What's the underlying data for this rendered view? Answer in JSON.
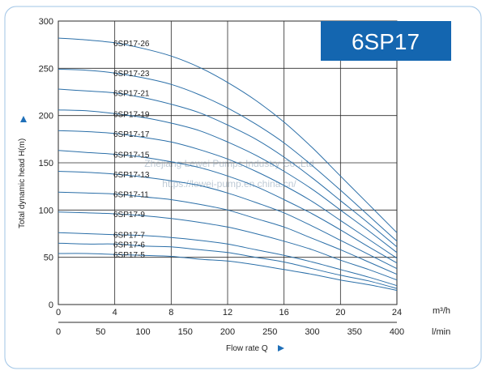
{
  "chart_data": {
    "type": "line",
    "title": "6SP17",
    "ylabel": "Total dynamic head H(m)",
    "xlabel": "Flow rate Q",
    "x_unit_primary": "m³/h",
    "x_unit_secondary": "l/min",
    "xlim": [
      0,
      24
    ],
    "ylim": [
      0,
      300
    ],
    "x_ticks": [
      0,
      4,
      8,
      12,
      16,
      20,
      24
    ],
    "x_ticks_lmin": [
      0,
      50,
      100,
      150,
      200,
      250,
      300,
      350,
      400
    ],
    "y_ticks": [
      0,
      50,
      100,
      150,
      200,
      250,
      300
    ],
    "grid": true,
    "watermark": [
      "Zhejiang Lewei Pumps Industry Co.,Ltd",
      "https://lewei-pump.en.china.cn/"
    ],
    "x": [
      0,
      2,
      4,
      6,
      8,
      10,
      12,
      14,
      16,
      18,
      20,
      22,
      24
    ],
    "series": [
      {
        "name": "6SP17-26",
        "values": [
          282,
          280,
          277,
          271,
          263,
          251,
          235,
          216,
          193,
          166,
          136,
          106,
          76
        ]
      },
      {
        "name": "6SP17-23",
        "values": [
          249,
          248,
          245,
          240,
          233,
          222,
          208,
          191,
          171,
          147,
          121,
          94,
          67
        ]
      },
      {
        "name": "6SP17-21",
        "values": [
          228,
          226,
          224,
          219,
          212,
          203,
          190,
          175,
          156,
          134,
          110,
          86,
          61
        ]
      },
      {
        "name": "6SP17-19",
        "values": [
          206,
          205,
          202,
          198,
          192,
          184,
          172,
          158,
          141,
          122,
          100,
          78,
          55
        ]
      },
      {
        "name": "6SP17-17",
        "values": [
          184,
          183,
          181,
          177,
          172,
          164,
          154,
          141,
          126,
          109,
          89,
          69,
          49
        ]
      },
      {
        "name": "6SP17-15",
        "values": [
          163,
          161,
          159,
          156,
          151,
          145,
          136,
          125,
          111,
          96,
          79,
          61,
          44
        ]
      },
      {
        "name": "6SP17-13",
        "values": [
          141,
          140,
          138,
          135,
          131,
          126,
          118,
          108,
          97,
          83,
          68,
          53,
          38
        ]
      },
      {
        "name": "6SP17-11",
        "values": [
          119,
          118,
          117,
          114,
          111,
          106,
          100,
          91,
          82,
          70,
          58,
          45,
          32
        ]
      },
      {
        "name": "6SP17-9",
        "values": [
          98,
          97,
          96,
          94,
          91,
          87,
          82,
          75,
          67,
          58,
          47,
          37,
          26
        ]
      },
      {
        "name": "6SP17-7",
        "values": [
          76,
          75,
          74,
          73,
          71,
          68,
          64,
          58,
          52,
          45,
          37,
          29,
          20
        ]
      },
      {
        "name": "6SP17-6",
        "values": [
          65,
          64,
          64,
          62,
          61,
          58,
          55,
          50,
          45,
          38,
          31,
          25,
          17
        ]
      },
      {
        "name": "6SP17-5",
        "values": [
          54,
          54,
          53,
          52,
          51,
          48,
          46,
          42,
          37,
          32,
          26,
          21,
          15
        ]
      }
    ]
  },
  "colors": {
    "curve": "#2b6fa8",
    "grid": "#2a2a2a",
    "axis_arrow": "#1f6fb8",
    "title_box": "#1466b0",
    "border": "#9fc4e6"
  }
}
